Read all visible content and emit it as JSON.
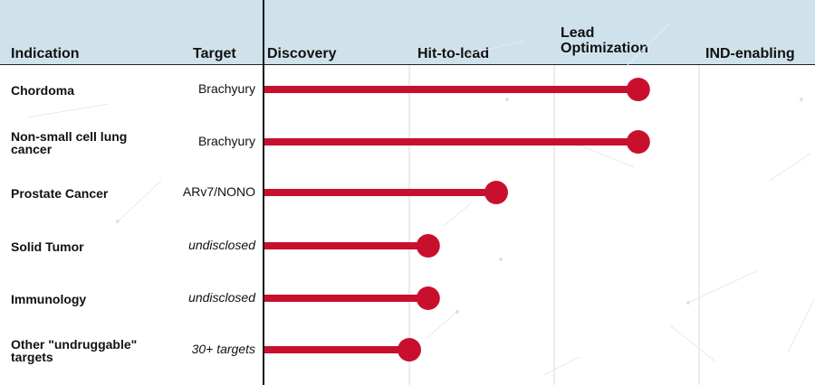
{
  "header": {
    "indication_label": "Indication",
    "target_label": "Target"
  },
  "chart_data": {
    "type": "lollipop",
    "stages": [
      "Discovery",
      "Hit-to-lead",
      "Lead\nOptimization",
      "IND-enabling"
    ],
    "rows": [
      {
        "indication": "Chordoma",
        "target": "Brachyury",
        "target_italic": false,
        "progress": 2.58
      },
      {
        "indication": "Non-small cell lung cancer",
        "target": "Brachyury",
        "target_italic": false,
        "progress": 2.58
      },
      {
        "indication": "Prostate Cancer",
        "target": "ARv7/NONO",
        "target_italic": false,
        "progress": 1.6
      },
      {
        "indication": "Solid Tumor",
        "target": "undisclosed",
        "target_italic": true,
        "progress": 1.13
      },
      {
        "indication": "Immunology",
        "target": "undisclosed",
        "target_italic": true,
        "progress": 1.13
      },
      {
        "indication": "Other \"undruggable\" targets",
        "target": "30+ targets",
        "target_italic": true,
        "progress": 1.0
      }
    ],
    "progress_unit": "stages completed (0 = start of Discovery, 4 = end of IND-enabling)"
  },
  "colors": {
    "header_band": "#cfe2ec",
    "bar": "#c8102e",
    "grid": "#d9d9d9",
    "text": "#111111"
  }
}
